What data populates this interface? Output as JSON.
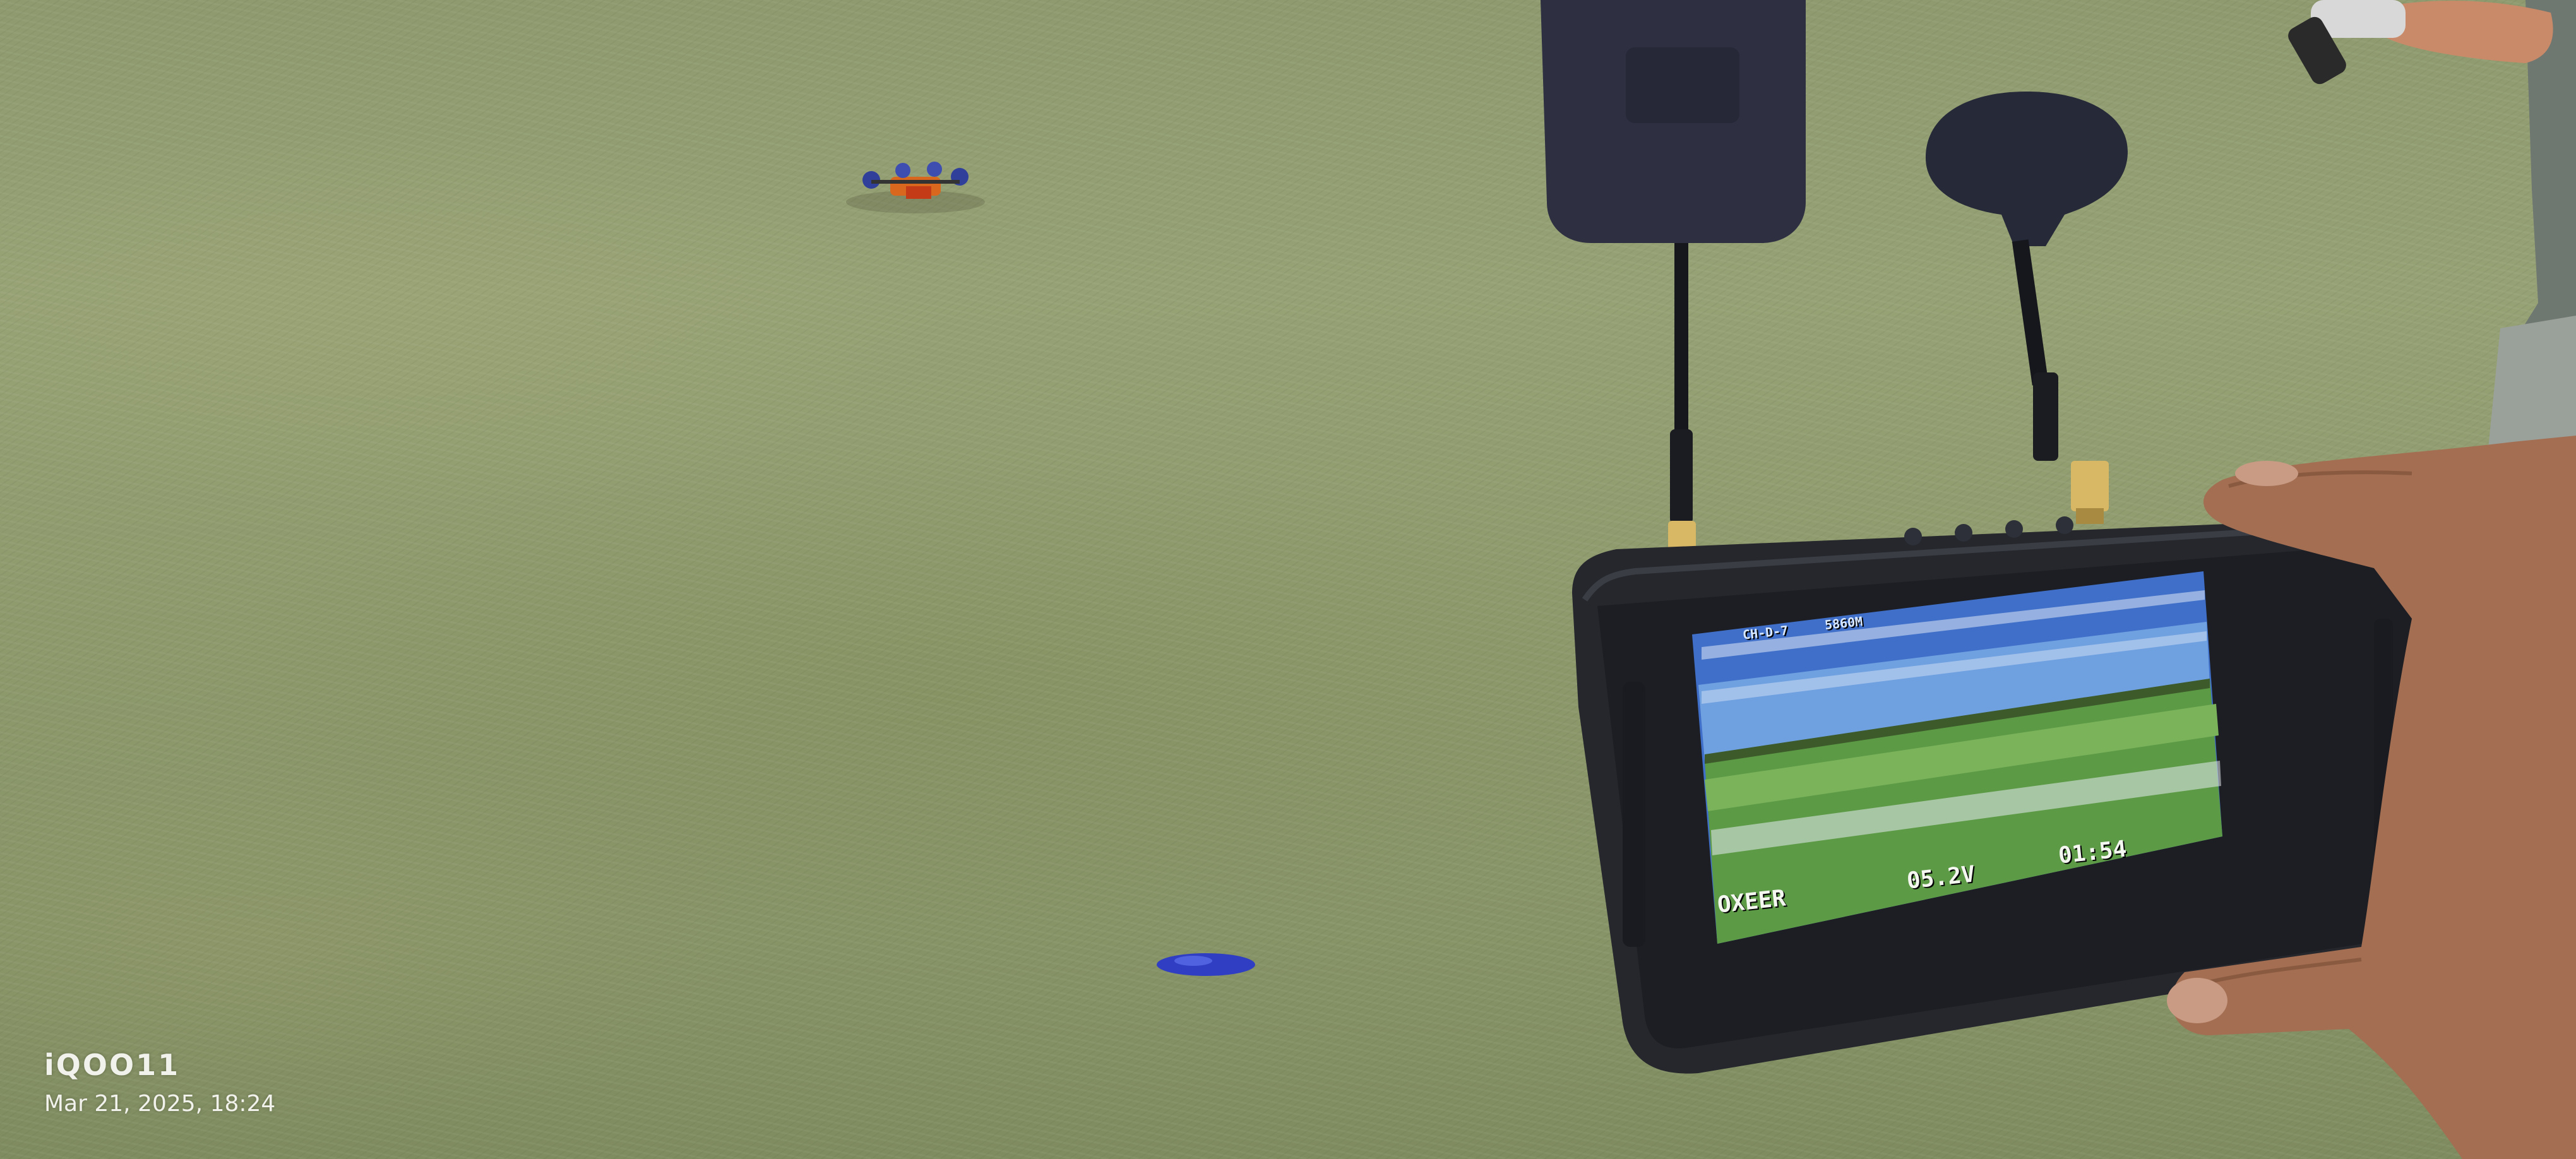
{
  "photo": {
    "watermark_brand": "iQOO11",
    "watermark_datetime": "Mar 21, 2025, 18:24"
  },
  "fpv_monitor": {
    "osd_top_left": "CH-D-7",
    "osd_top_right": "5860M",
    "osd_brand": "OXEER",
    "osd_voltage": "05.2V",
    "osd_timer": "01:54"
  },
  "colors": {
    "grass": "#8f9a6f",
    "monitor_body": "#25272d",
    "antenna_cap": "#2e3042",
    "sky_on_screen": "#3f6fc8",
    "field_on_screen": "#5c9a46"
  },
  "icons": [
    "drone-icon",
    "patch-antenna-icon",
    "mushroom-antenna-icon",
    "hand-icon"
  ]
}
